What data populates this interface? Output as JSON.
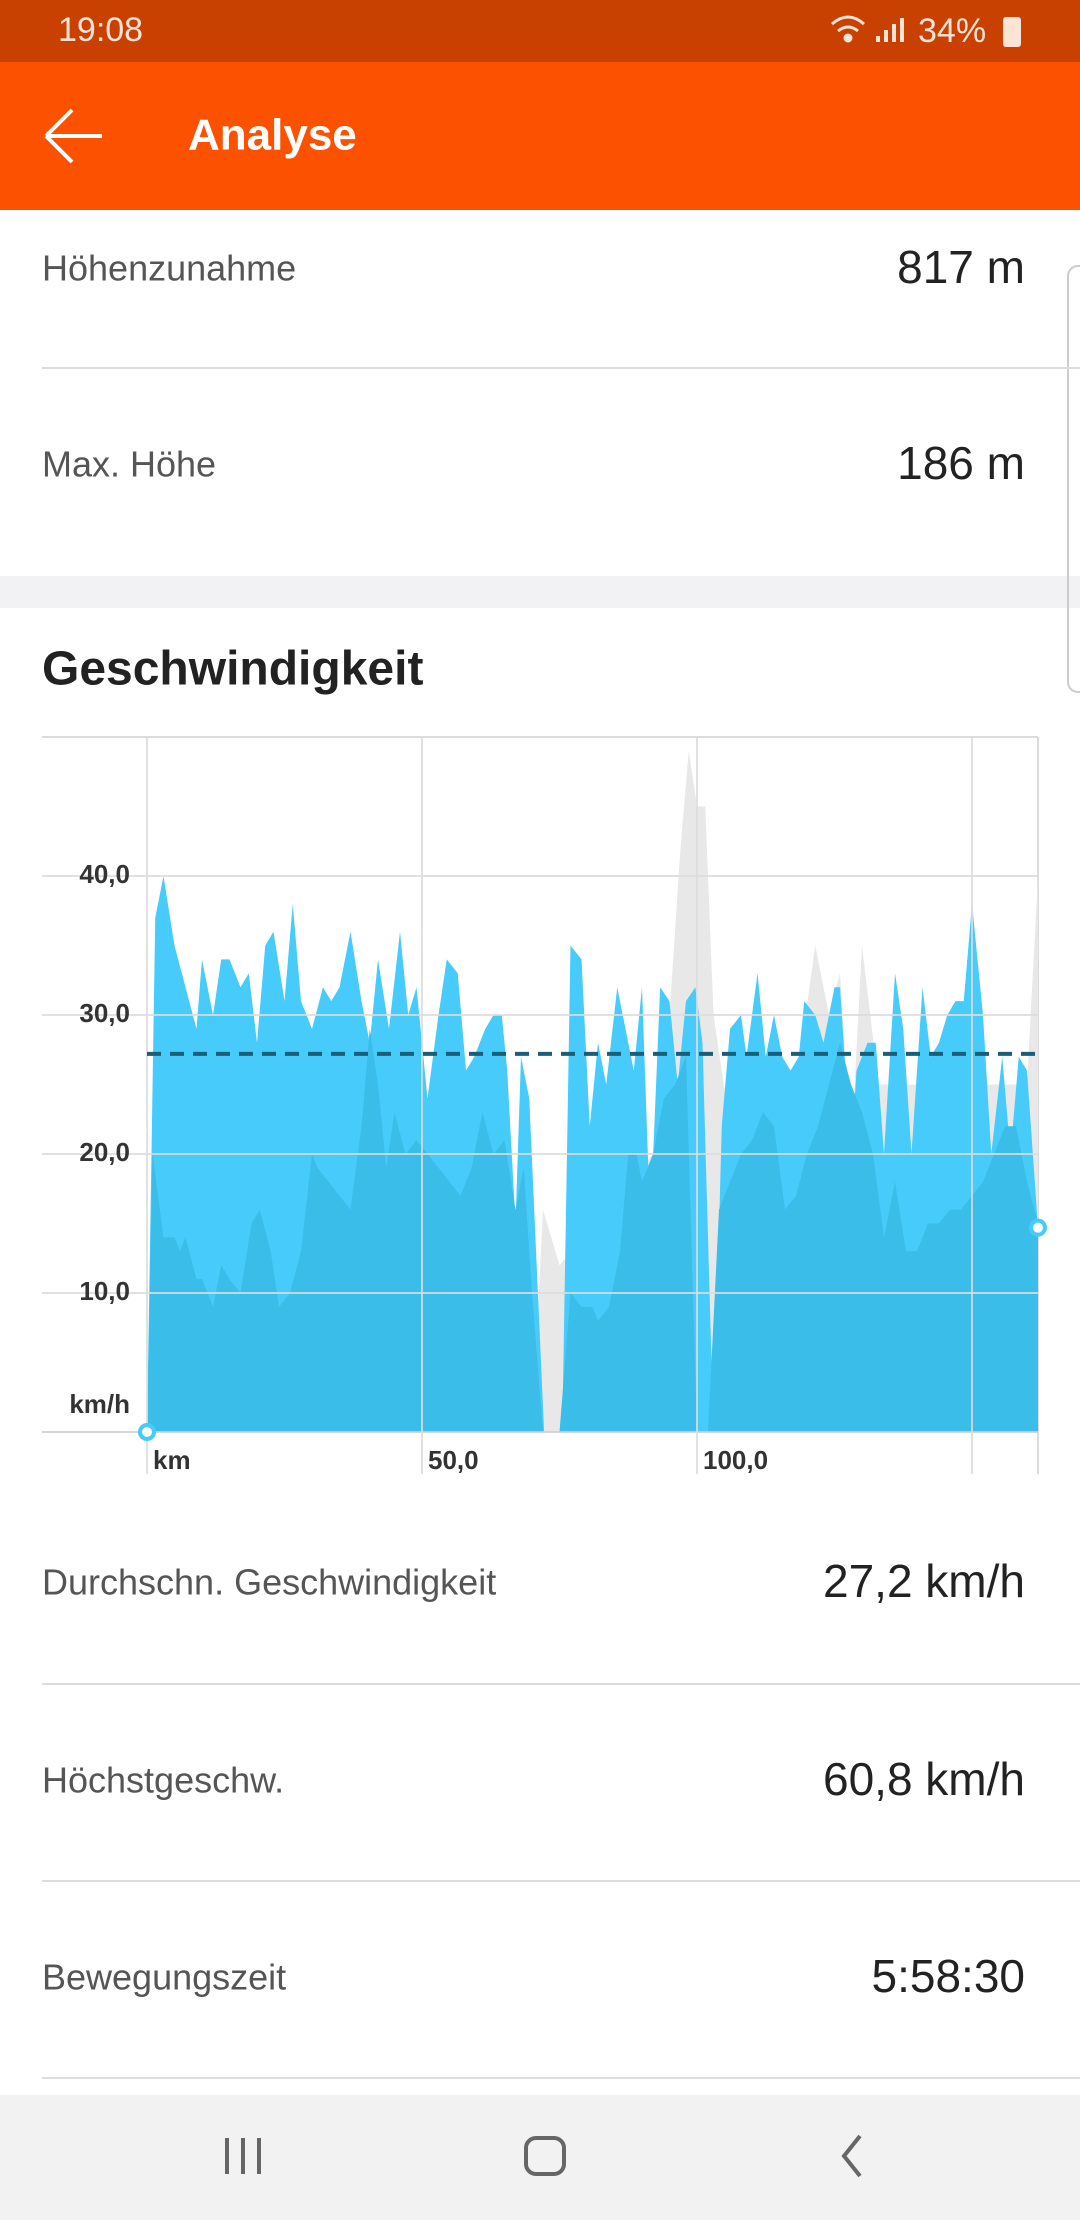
{
  "status_bar": {
    "time": "19:08",
    "battery": "34%"
  },
  "header": {
    "title": "Analyse"
  },
  "elevation_stats": [
    {
      "label": "Höhenzunahme",
      "value": "817 m"
    },
    {
      "label": "Max. Höhe",
      "value": "186 m"
    }
  ],
  "speed_section": {
    "title": "Geschwindigkeit"
  },
  "chart_data": {
    "type": "area",
    "xlim": [
      0,
      162
    ],
    "ylim": [
      0,
      50
    ],
    "xticks": [
      {
        "value": 0,
        "label": "km"
      },
      {
        "value": 50,
        "label": "50,0"
      },
      {
        "value": 100,
        "label": "100,0"
      }
    ],
    "x_gridlines": [
      150
    ],
    "yticks": [
      {
        "value": 0,
        "label": "km/h"
      },
      {
        "value": 10,
        "label": "10,0"
      },
      {
        "value": 20,
        "label": "20,0"
      },
      {
        "value": 30,
        "label": "30,0"
      },
      {
        "value": 40,
        "label": "40,0"
      }
    ],
    "grid": true,
    "average": 27.2,
    "average_color": "#1b5e78",
    "series": [
      {
        "color": "#e8e8e8",
        "x": [
          0,
          70,
          72,
          75,
          92,
          95,
          97,
          98.5,
          100,
          101.5,
          103,
          106,
          118,
          121.5,
          124,
          126,
          128,
          130,
          133,
          160,
          162
        ],
        "values": [
          0,
          0,
          16,
          12,
          20,
          30,
          42,
          49,
          45,
          45,
          30,
          22,
          25,
          35,
          30,
          33,
          20,
          35,
          25,
          25,
          40
        ]
      },
      {
        "color": "#46cbfa",
        "x": [
          0,
          1.5,
          3,
          5,
          7,
          9,
          10,
          12,
          13.5,
          15,
          17,
          18.5,
          20,
          21.5,
          23,
          25,
          26.5,
          28,
          30,
          32,
          33.5,
          35,
          37,
          39,
          40.5,
          42,
          44,
          46,
          47.5,
          49,
          51,
          53,
          54.5,
          56.5,
          58,
          59.5,
          61.5,
          63,
          64.5,
          65.5,
          67,
          68,
          69.5,
          72.2,
          75.5,
          77,
          79,
          80.5,
          82,
          83.5,
          85.5,
          87,
          88.5,
          90,
          91.5,
          93.3,
          95,
          96.5,
          98,
          99.7,
          101,
          103,
          104.5,
          106,
          108,
          109,
          111,
          112.5,
          114,
          115.5,
          117,
          118.5,
          119.5,
          121.5,
          123,
          125,
          126,
          128,
          129,
          131,
          132.5,
          134,
          136,
          137.5,
          139,
          141,
          142.5,
          144,
          145.5,
          147,
          148.5,
          150,
          152,
          153.5,
          155.5,
          157,
          158.5,
          160,
          162
        ],
        "values": [
          0,
          37,
          40,
          35,
          32,
          29,
          34,
          30,
          34,
          34,
          32,
          33,
          28,
          35,
          36,
          31,
          38,
          31,
          29,
          32,
          31,
          32,
          36,
          31,
          28,
          34,
          29,
          36,
          30,
          32,
          24,
          30,
          34,
          33,
          26,
          27,
          29,
          30,
          30,
          26,
          15,
          27,
          24,
          0,
          0,
          35,
          34,
          22,
          28,
          25,
          32,
          29,
          26,
          32,
          15,
          32,
          31,
          25,
          31,
          32,
          28,
          0,
          22,
          29,
          30,
          27,
          33,
          27,
          30,
          27,
          26,
          27,
          31,
          30,
          28,
          32,
          32,
          20,
          26,
          28,
          28,
          20,
          33,
          29,
          20,
          32,
          27,
          28,
          30,
          31,
          31,
          38,
          30,
          20,
          27,
          20,
          27,
          26,
          14.7
        ]
      },
      {
        "color": "#3bbde9",
        "x": [
          0,
          1,
          3,
          5,
          6,
          7,
          9,
          10,
          12,
          13.5,
          15,
          17,
          19,
          20.5,
          22.5,
          24,
          26,
          28,
          30,
          31,
          33,
          35,
          37,
          39,
          40.5,
          42,
          43.5,
          45,
          47,
          49,
          51,
          53,
          55,
          57,
          59,
          61,
          63,
          65,
          67,
          68.5,
          70,
          72,
          75,
          77,
          79,
          81,
          82,
          84,
          86,
          87.5,
          89,
          90,
          92,
          94,
          96,
          98,
          100,
          102,
          104,
          106,
          108,
          110,
          112,
          114,
          116,
          118,
          120,
          122,
          124,
          126,
          128,
          130,
          132,
          134,
          136,
          138,
          140,
          142,
          144,
          146,
          148,
          150,
          152,
          154,
          156,
          158,
          160,
          162
        ],
        "values": [
          0,
          20,
          14,
          14,
          13,
          14,
          11,
          11,
          9,
          12,
          11,
          10,
          15,
          16,
          13,
          9,
          10,
          13,
          20,
          19,
          18,
          17,
          16,
          22,
          29,
          25,
          19,
          23,
          20,
          21,
          20,
          19,
          18,
          17,
          19,
          23,
          20,
          21,
          16,
          19,
          10,
          0,
          0,
          10,
          9,
          9,
          8,
          9,
          13,
          20,
          20,
          18,
          20,
          24,
          25,
          27,
          0,
          0,
          16,
          18,
          20,
          21,
          23,
          22,
          16,
          17,
          20,
          22,
          25,
          28,
          25,
          23,
          20,
          14,
          18,
          13,
          13,
          15,
          15,
          16,
          16,
          17,
          18,
          20,
          22,
          22,
          18,
          15
        ]
      }
    ]
  },
  "speed_stats": [
    {
      "label": "Durchschn. Geschwindigkeit",
      "value": "27,2 km/h"
    },
    {
      "label": "Höchstgeschw.",
      "value": "60,8 km/h"
    },
    {
      "label": "Bewegungszeit",
      "value": "5:58:30"
    }
  ]
}
